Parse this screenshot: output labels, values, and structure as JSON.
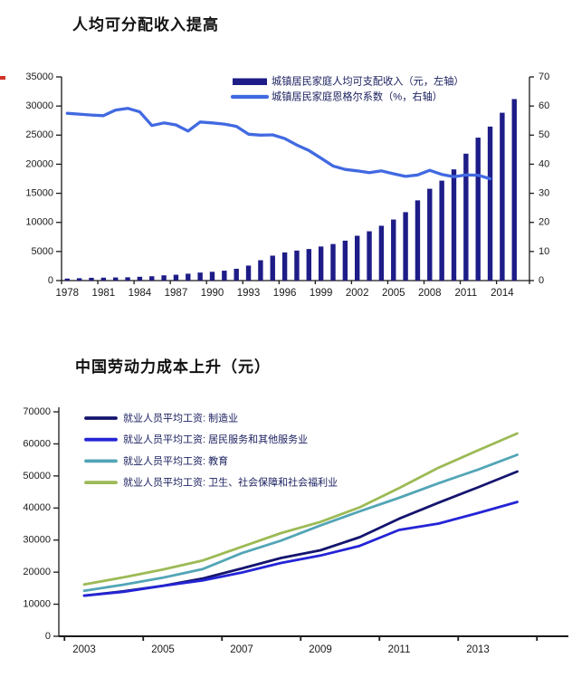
{
  "colors": {
    "axis": "#1a1a1a",
    "tick_text": "#1a1a1a",
    "legend_text": "#1c2260",
    "red_edge_mark": "#d03228",
    "chart_bg": "#ffffff"
  },
  "chart_data": [
    {
      "type": "bar",
      "title": "人均可分配收入提高",
      "years": [
        1978,
        1979,
        1980,
        1981,
        1982,
        1983,
        1984,
        1985,
        1986,
        1987,
        1988,
        1989,
        1990,
        1991,
        1992,
        1993,
        1994,
        1995,
        1996,
        1997,
        1998,
        1999,
        2000,
        2001,
        2002,
        2003,
        2004,
        2005,
        2006,
        2007,
        2008,
        2009,
        2010,
        2011,
        2012,
        2013,
        2014,
        2015
      ],
      "x_tick_labels": [
        "1978",
        "1981",
        "1984",
        "1987",
        "1990",
        "1993",
        "1996",
        "1999",
        "2002",
        "2005",
        "2008",
        "2011",
        "2014"
      ],
      "left_axis": {
        "min": 0,
        "max": 35000,
        "step": 5000
      },
      "right_axis": {
        "min": 0,
        "max": 70,
        "step": 10
      },
      "legend_position": "top-right-inside",
      "grid": false,
      "series": [
        {
          "name": "城镇居民家庭人均可支配收入（元，左轴）",
          "kind": "bar",
          "axis": "left",
          "color": "#1e1c87",
          "values": [
            343,
            405,
            478,
            500,
            535,
            565,
            652,
            739,
            900,
            1002,
            1181,
            1376,
            1510,
            1701,
            2027,
            2577,
            3496,
            4283,
            4839,
            5160,
            5425,
            5854,
            6280,
            6860,
            7703,
            8472,
            9422,
            10493,
            11759,
            13786,
            15781,
            17175,
            19109,
            21810,
            24565,
            26467,
            28844,
            31195
          ]
        },
        {
          "name": "城镇居民家庭恩格尔系数（%，右轴）",
          "kind": "line",
          "axis": "right",
          "color": "#4169e1",
          "values": [
            57.5,
            57.2,
            56.9,
            56.7,
            58.6,
            59.2,
            58.0,
            53.3,
            54.2,
            53.5,
            51.4,
            54.5,
            54.2,
            53.8,
            53.0,
            50.3,
            50.0,
            50.1,
            48.8,
            46.6,
            44.7,
            42.1,
            39.4,
            38.2,
            37.7,
            37.1,
            37.7,
            36.7,
            35.8,
            36.3,
            37.9,
            36.5,
            35.7,
            36.3,
            36.2,
            35.0
          ]
        }
      ]
    },
    {
      "type": "line",
      "title": "中国劳动力成本上升（元）",
      "years": [
        2003,
        2004,
        2005,
        2006,
        2007,
        2008,
        2009,
        2010,
        2011,
        2012,
        2013,
        2014
      ],
      "x_tick_labels": [
        "2003",
        "2005",
        "2007",
        "2009",
        "2011",
        "2013"
      ],
      "y_axis": {
        "min": 0,
        "max": 70000,
        "step": 10000
      },
      "legend_position": "top-left-inside",
      "grid": false,
      "series": [
        {
          "name": "就业人员平均工资: 制造业",
          "color": "#14146e",
          "values": [
            12671,
            14033,
            15757,
            17966,
            21144,
            24404,
            26810,
            30916,
            36665,
            41650,
            46431,
            51369
          ]
        },
        {
          "name": "就业人员平均工资: 居民服务和其他服务业",
          "color": "#2424d6",
          "values": [
            12665,
            13855,
            15747,
            17383,
            19877,
            22858,
            25172,
            28206,
            33169,
            35135,
            38429,
            41882
          ]
        },
        {
          "name": "就业人员平均工资: 教育",
          "color": "#52a5b6",
          "values": [
            14189,
            16085,
            18259,
            20918,
            25908,
            29831,
            34543,
            38968,
            43194,
            47734,
            51950,
            56580
          ]
        },
        {
          "name": "就业人员平均工资: 卫生、社会保障和社会福利业",
          "color": "#9cba55",
          "values": [
            16185,
            18386,
            20808,
            23590,
            27892,
            32185,
            35662,
            40232,
            46206,
            52564,
            57979,
            63267
          ]
        }
      ]
    }
  ]
}
